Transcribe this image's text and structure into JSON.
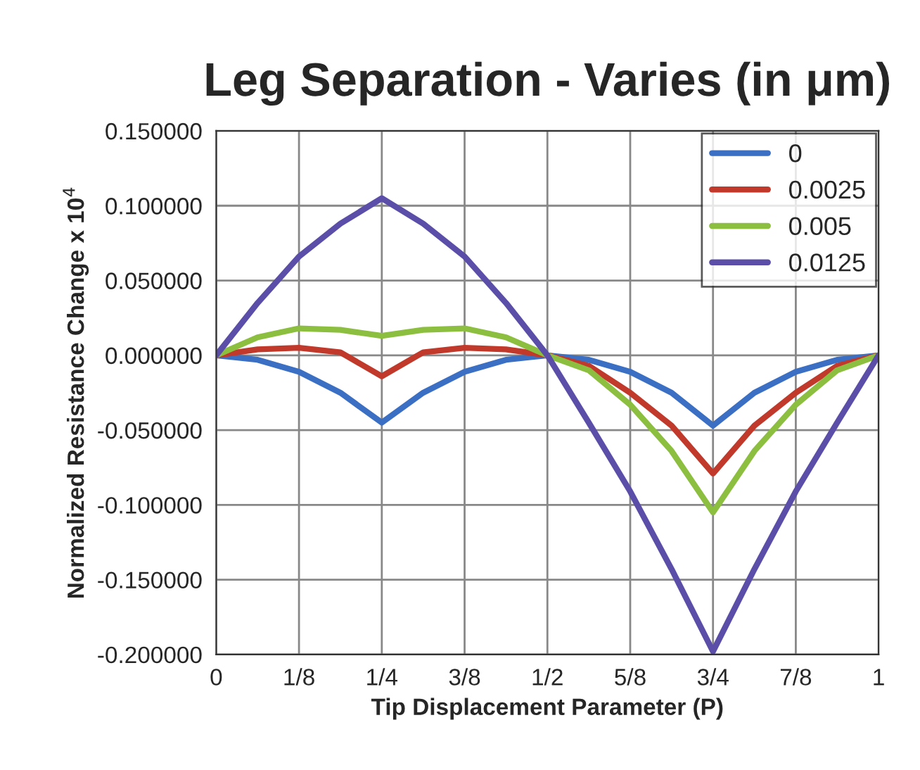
{
  "chart_data": {
    "type": "line",
    "title": "Leg Separation - Varies (in μm)",
    "xlabel": "Tip Displacement Parameter (P)",
    "ylabel": "Normalized Resistance Change x 10$^{4}$",
    "x": [
      0,
      0.0625,
      0.125,
      0.1875,
      0.25,
      0.3125,
      0.375,
      0.4375,
      0.5,
      0.5625,
      0.625,
      0.6875,
      0.75,
      0.8125,
      0.875,
      0.9375,
      1
    ],
    "series": [
      {
        "name": "0",
        "color": "#3a6fc4",
        "values": [
          0,
          -0.003,
          -0.011,
          -0.025,
          -0.045,
          -0.025,
          -0.011,
          -0.003,
          0,
          -0.003,
          -0.011,
          -0.025,
          -0.047,
          -0.025,
          -0.011,
          -0.003,
          0
        ]
      },
      {
        "name": "0.0025",
        "color": "#c0392b",
        "values": [
          0,
          0.004,
          0.005,
          0.002,
          -0.014,
          0.002,
          0.005,
          0.004,
          0,
          -0.007,
          -0.025,
          -0.047,
          -0.079,
          -0.047,
          -0.025,
          -0.007,
          0
        ]
      },
      {
        "name": "0.005",
        "color": "#8cbf3f",
        "values": [
          0,
          0.012,
          0.018,
          0.017,
          0.013,
          0.017,
          0.018,
          0.012,
          0,
          -0.01,
          -0.033,
          -0.064,
          -0.105,
          -0.064,
          -0.033,
          -0.01,
          0
        ]
      },
      {
        "name": "0.0125",
        "color": "#5b4ea8",
        "values": [
          0,
          0.035,
          0.066,
          0.088,
          0.105,
          0.088,
          0.066,
          0.035,
          0,
          -0.045,
          -0.091,
          -0.143,
          -0.198,
          -0.143,
          -0.091,
          -0.045,
          0
        ]
      }
    ],
    "xlim": [
      0,
      1
    ],
    "xticks": [
      0,
      {
        "value": 0.125,
        "label": "1/8"
      },
      {
        "value": 0.25,
        "label": "1/4"
      },
      {
        "value": 0.375,
        "label": "3/8"
      },
      {
        "value": 0.5,
        "label": "1/2"
      },
      {
        "value": 0.625,
        "label": "5/8"
      },
      {
        "value": 0.75,
        "label": "3/4"
      },
      {
        "value": 0.875,
        "label": "7/8"
      },
      1
    ],
    "ylim": [
      -0.2,
      0.15
    ],
    "yticks": [
      {
        "value": -0.2,
        "label": "-0.200000"
      },
      {
        "value": -0.15,
        "label": "-0.150000"
      },
      {
        "value": -0.1,
        "label": "-0.100000"
      },
      {
        "value": -0.05,
        "label": "-0.050000"
      },
      {
        "value": 0,
        "label": "0.000000"
      },
      {
        "value": 0.05,
        "label": "0.050000"
      },
      {
        "value": 0.1,
        "label": "0.100000"
      },
      {
        "value": 0.15,
        "label": "0.150000"
      }
    ],
    "grid": true,
    "legend": "top right",
    "marker": "none",
    "line_style": "solid"
  }
}
